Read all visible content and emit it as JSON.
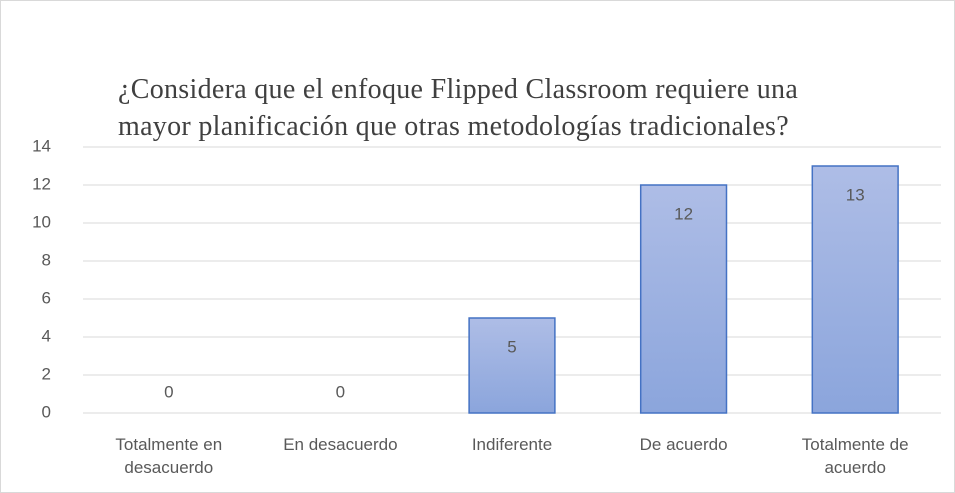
{
  "chart_data": {
    "type": "bar",
    "title": "¿Considera que el enfoque Flipped Classroom requiere una mayor planificación que otras metodologías tradicionales?",
    "categories": [
      "Totalmente en desacuerdo",
      "En desacuerdo",
      "Indiferente",
      "De acuerdo",
      "Totalmente de acuerdo"
    ],
    "values": [
      0,
      0,
      5,
      12,
      13
    ],
    "color": "#4472c4",
    "ylim": [
      0,
      14
    ],
    "yticks": [
      0,
      2,
      4,
      6,
      8,
      10,
      12,
      14
    ],
    "grid": true
  }
}
